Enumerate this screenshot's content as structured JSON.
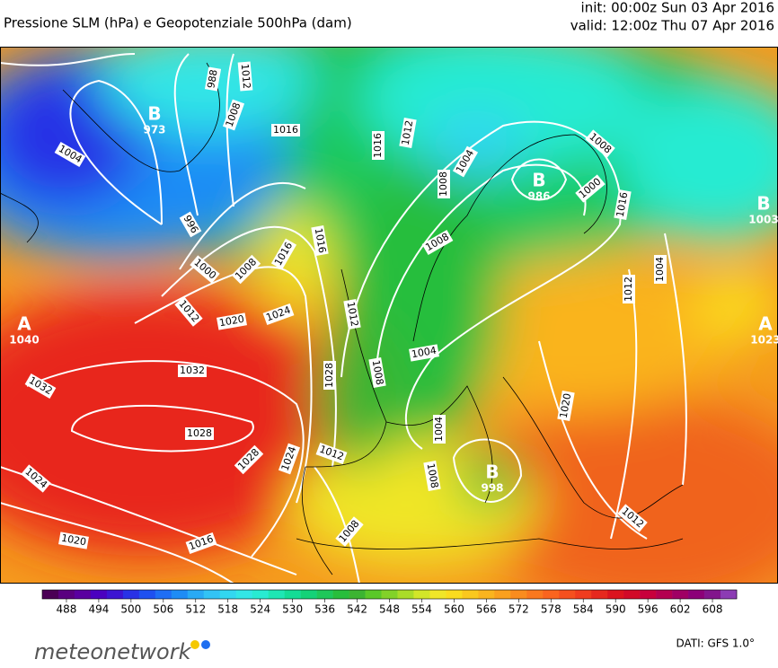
{
  "header": {
    "title": "Pressione SLM (hPa) e Geopotenziale 500hPa (dam)",
    "init": "init: 00:00z Sun 03 Apr 2016",
    "valid": "valid: 12:00z Thu 07 Apr 2016"
  },
  "centers": [
    {
      "label": "B",
      "value": "973"
    },
    {
      "label": "B",
      "value": "986"
    },
    {
      "label": "B",
      "value": "1003"
    },
    {
      "label": "A",
      "value": "1040"
    },
    {
      "label": "A",
      "value": "1023"
    },
    {
      "label": "B",
      "value": "998"
    }
  ],
  "isobar_labels": [
    "988",
    "1012",
    "1008",
    "1016",
    "1004",
    "996",
    "1000",
    "1008",
    "1016",
    "1012",
    "1020",
    "1024",
    "1016",
    "1012",
    "1008",
    "1004",
    "1016",
    "1012",
    "1008",
    "1004",
    "1000",
    "1008",
    "1016",
    "1012",
    "1004",
    "1008",
    "1020",
    "1028",
    "1032",
    "1032",
    "1028",
    "1024",
    "1028",
    "1024",
    "1020",
    "1016",
    "1012",
    "1008",
    "1004",
    "1008",
    "1012"
  ],
  "colorbar": {
    "ticks": [
      "488",
      "494",
      "500",
      "506",
      "512",
      "518",
      "524",
      "530",
      "536",
      "542",
      "548",
      "554",
      "560",
      "566",
      "572",
      "578",
      "584",
      "590",
      "596",
      "602",
      "608"
    ],
    "colors": [
      "#4b0055",
      "#5a0080",
      "#5a00a0",
      "#4b00c0",
      "#3c14d2",
      "#2832e6",
      "#1e50f0",
      "#1e6ef5",
      "#1e8cf5",
      "#28aaf5",
      "#32c3f5",
      "#32d7f0",
      "#32e6e6",
      "#28ebd2",
      "#1ee6b4",
      "#14dc96",
      "#14d278",
      "#1ec85a",
      "#28be3c",
      "#3cb432",
      "#5ac828",
      "#82d228",
      "#aadc28",
      "#d2e628",
      "#f0e628",
      "#fadc1e",
      "#fac81e",
      "#fab41e",
      "#faa01e",
      "#fa8c1e",
      "#fa781e",
      "#fa641e",
      "#f5501e",
      "#f03c1e",
      "#e6281e",
      "#dc141e",
      "#d20a28",
      "#c8003c",
      "#b40050",
      "#a00064",
      "#8c0078",
      "#82148c",
      "#8c3cb4"
    ]
  },
  "footer": {
    "logo": "meteonetwork",
    "source": "DATI: GFS 1.0°"
  }
}
